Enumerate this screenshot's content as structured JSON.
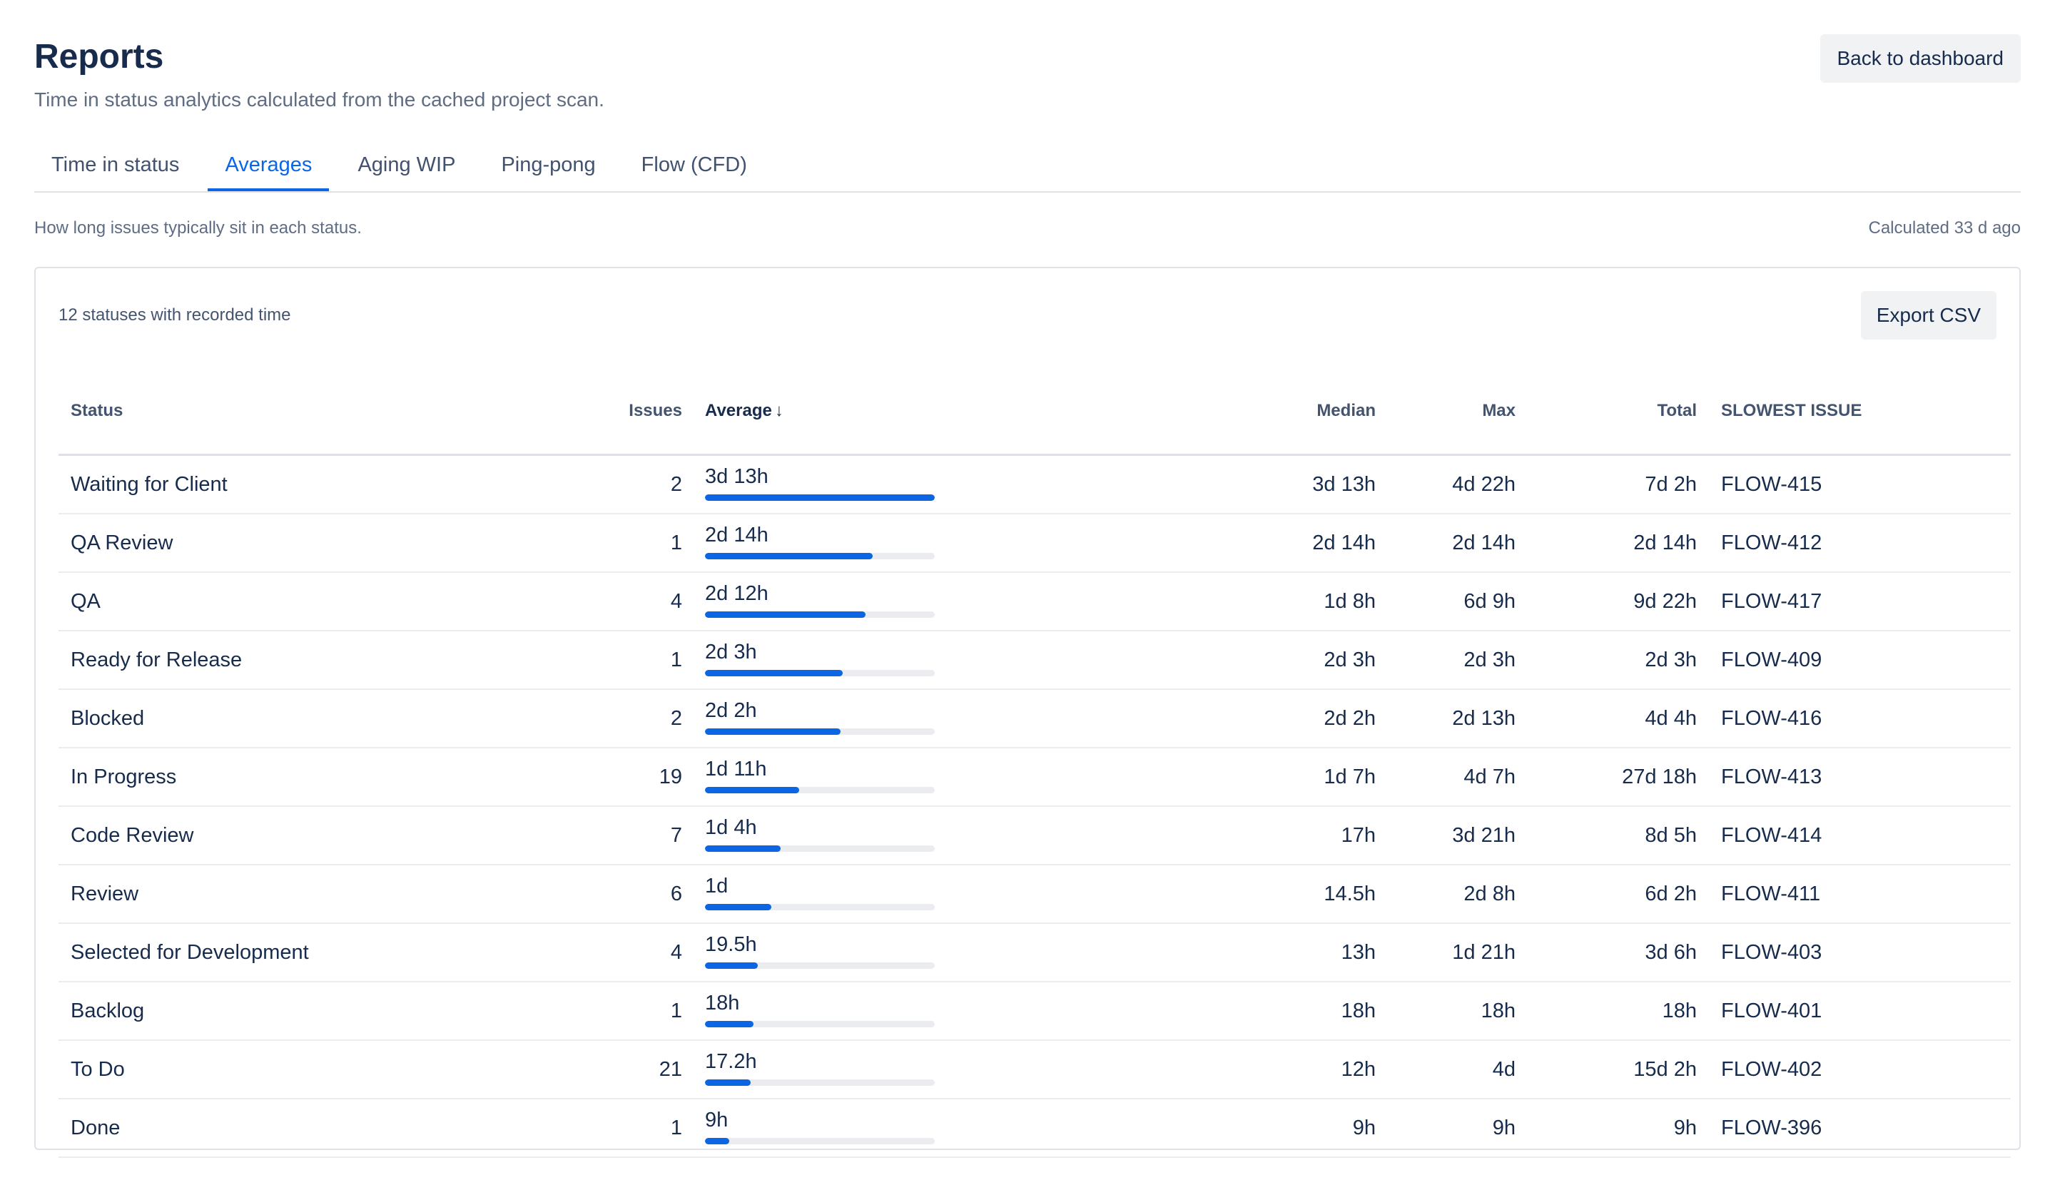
{
  "header": {
    "title": "Reports",
    "subtitle": "Time in status analytics calculated from the cached project scan.",
    "back_label": "Back to dashboard"
  },
  "tabs": [
    {
      "label": "Time in status",
      "active": false
    },
    {
      "label": "Averages",
      "active": true
    },
    {
      "label": "Aging WIP",
      "active": false
    },
    {
      "label": "Ping-pong",
      "active": false
    },
    {
      "label": "Flow (CFD)",
      "active": false
    }
  ],
  "summary": {
    "description": "How long issues typically sit in each status.",
    "calculated": "Calculated 33 d ago"
  },
  "card": {
    "caption": "12 statuses with recorded time",
    "export_label": "Export CSV"
  },
  "table": {
    "columns": {
      "status": "Status",
      "issues": "Issues",
      "average": "Average",
      "median": "Median",
      "max": "Max",
      "total": "Total",
      "slowest": "SLOWEST ISSUE"
    },
    "sort_icon": "arrow-down-icon",
    "rows": [
      {
        "status": "Waiting for Client",
        "issues": "2",
        "average": "3d 13h",
        "average_fraction": 1.0,
        "median": "3d 13h",
        "max": "4d 22h",
        "total": "7d 2h",
        "slowest": "FLOW-415"
      },
      {
        "status": "QA Review",
        "issues": "1",
        "average": "2d 14h",
        "average_fraction": 0.73,
        "median": "2d 14h",
        "max": "2d 14h",
        "total": "2d 14h",
        "slowest": "FLOW-412"
      },
      {
        "status": "QA",
        "issues": "4",
        "average": "2d 12h",
        "average_fraction": 0.7,
        "median": "1d 8h",
        "max": "6d 9h",
        "total": "9d 22h",
        "slowest": "FLOW-417"
      },
      {
        "status": "Ready for Release",
        "issues": "1",
        "average": "2d 3h",
        "average_fraction": 0.6,
        "median": "2d 3h",
        "max": "2d 3h",
        "total": "2d 3h",
        "slowest": "FLOW-409"
      },
      {
        "status": "Blocked",
        "issues": "2",
        "average": "2d 2h",
        "average_fraction": 0.59,
        "median": "2d 2h",
        "max": "2d 13h",
        "total": "4d 4h",
        "slowest": "FLOW-416"
      },
      {
        "status": "In Progress",
        "issues": "19",
        "average": "1d 11h",
        "average_fraction": 0.41,
        "median": "1d 7h",
        "max": "4d 7h",
        "total": "27d 18h",
        "slowest": "FLOW-413"
      },
      {
        "status": "Code Review",
        "issues": "7",
        "average": "1d 4h",
        "average_fraction": 0.33,
        "median": "17h",
        "max": "3d 21h",
        "total": "8d 5h",
        "slowest": "FLOW-414"
      },
      {
        "status": "Review",
        "issues": "6",
        "average": "1d",
        "average_fraction": 0.29,
        "median": "14.5h",
        "max": "2d 8h",
        "total": "6d 2h",
        "slowest": "FLOW-411"
      },
      {
        "status": "Selected for Development",
        "issues": "4",
        "average": "19.5h",
        "average_fraction": 0.23,
        "median": "13h",
        "max": "1d 21h",
        "total": "3d 6h",
        "slowest": "FLOW-403"
      },
      {
        "status": "Backlog",
        "issues": "1",
        "average": "18h",
        "average_fraction": 0.21,
        "median": "18h",
        "max": "18h",
        "total": "18h",
        "slowest": "FLOW-401"
      },
      {
        "status": "To Do",
        "issues": "21",
        "average": "17.2h",
        "average_fraction": 0.2,
        "median": "12h",
        "max": "4d",
        "total": "15d 2h",
        "slowest": "FLOW-402"
      },
      {
        "status": "Done",
        "issues": "1",
        "average": "9h",
        "average_fraction": 0.105,
        "median": "9h",
        "max": "9h",
        "total": "9h",
        "slowest": "FLOW-396"
      }
    ]
  },
  "colors": {
    "accent": "#0c66e4",
    "track": "#ebecf0",
    "text": "#172b4d",
    "muted": "#5e6c84"
  }
}
